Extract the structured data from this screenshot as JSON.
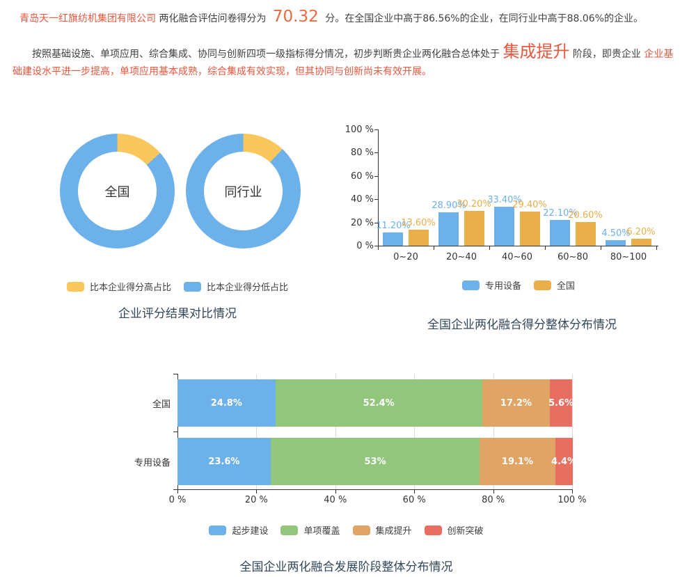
{
  "colors": {
    "blue": "#6cb1ea",
    "donut_yellow": "#f9c75c",
    "bar_orange": "#e9ad49",
    "green": "#92c67d",
    "stack_orange": "#e0a465",
    "red": "#e96e62",
    "text_dark": "#404040",
    "text_red": "#e9573d",
    "score_orange": "#ef6a3d",
    "title": "#33475b"
  },
  "header": {
    "company": "青岛天一红旗纺机集团有限公司",
    "before_score": "两化融合评估问卷得分为",
    "score": "70.32",
    "after_score": "分。在全国企业中高于86.56%的企业，在同行业中高于88.06%的企业。"
  },
  "paragraph": {
    "dark1": "按照基础设施、单项应用、综合集成、协同与创新四项一级指标得分情况，初步判断贵企业两化融合总体处于",
    "stage": "集成提升",
    "dark2": "阶段，即贵企业",
    "red2": "企业基础建设水平进一步提高，单项应用基本成熟，综合集成有效实现，但其协同与创新尚未有效开展。"
  },
  "chart_data": [
    {
      "type": "pie",
      "subtype": "donut-pair",
      "title": "企业评分结果对比情况",
      "donuts": [
        {
          "label": "全国",
          "higher_pct": 13.44,
          "lower_pct": 86.56
        },
        {
          "label": "同行业",
          "higher_pct": 11.94,
          "lower_pct": 88.06
        }
      ],
      "legend": [
        {
          "label": "比本企业得分高占比",
          "color": "#f9c75c"
        },
        {
          "label": "比本企业得分低占比",
          "color": "#6cb1ea"
        }
      ]
    },
    {
      "type": "bar",
      "subtype": "grouped-vertical",
      "title": "全国企业两化融合得分整体分布情况",
      "categories": [
        "0~20",
        "20~40",
        "40~60",
        "60~80",
        "80~100"
      ],
      "yticks": [
        "0 %",
        "20 %",
        "40 %",
        "60 %",
        "80 %",
        "100 %"
      ],
      "ylim": [
        0,
        100
      ],
      "grid": false,
      "legend_position": "bottom",
      "series": [
        {
          "name": "专用设备",
          "color": "#6cb1ea",
          "values": [
            11.2,
            28.9,
            33.4,
            22.1,
            4.5
          ],
          "labels": [
            "11.20%",
            "28.90%",
            "33.40%",
            "22.10%",
            "4.50%"
          ]
        },
        {
          "name": "全国",
          "color": "#e9ad49",
          "values": [
            13.6,
            30.2,
            29.4,
            20.6,
            6.2
          ],
          "labels": [
            "13.60%",
            "30.20%",
            "29.40%",
            "20.60%",
            "6.20%"
          ]
        }
      ]
    },
    {
      "type": "bar",
      "subtype": "stacked-horizontal",
      "title": "全国企业两化融合发展阶段整体分布情况",
      "categories": [
        "全国",
        "专用设备"
      ],
      "xticks": [
        "0 %",
        "20 %",
        "40 %",
        "60 %",
        "80 %",
        "100 %"
      ],
      "xlim": [
        0,
        100
      ],
      "grid": true,
      "legend_position": "bottom",
      "series": [
        {
          "name": "起步建设",
          "color": "#6cb1ea",
          "values": [
            24.8,
            23.6
          ],
          "labels": [
            "24.8%",
            "23.6%"
          ]
        },
        {
          "name": "单项覆盖",
          "color": "#92c67d",
          "values": [
            52.4,
            53.0
          ],
          "labels": [
            "52.4%",
            "53%"
          ]
        },
        {
          "name": "集成提升",
          "color": "#e0a465",
          "values": [
            17.2,
            19.1
          ],
          "labels": [
            "17.2%",
            "19.1%"
          ]
        },
        {
          "name": "创新突破",
          "color": "#e96e62",
          "values": [
            5.6,
            4.4
          ],
          "labels": [
            "5.6%",
            "4.4%"
          ]
        }
      ]
    }
  ]
}
